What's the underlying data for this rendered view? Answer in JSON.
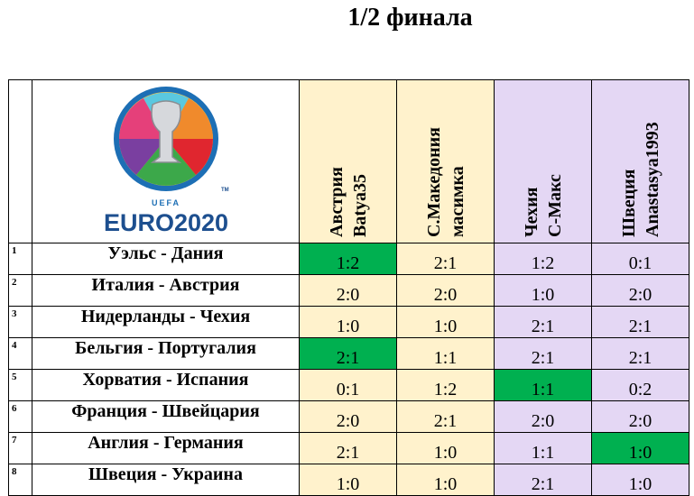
{
  "title": "1/2  финала",
  "logo": {
    "uefa": "UEFA",
    "euro": "EURO2020",
    "tm": "TM"
  },
  "players": [
    {
      "team": "Австрия",
      "name": "Batya35",
      "color": "yellow"
    },
    {
      "team": "С.Македония",
      "name": "масимка",
      "color": "yellow"
    },
    {
      "team": "Чехия",
      "name": "С-Макс",
      "color": "purple"
    },
    {
      "team": "Швеция",
      "name": "Anastasya1993",
      "color": "purple"
    }
  ],
  "rows": [
    {
      "num": "1",
      "match": "Уэльс - Дания",
      "scores": [
        "1:2",
        "2:1",
        "1:2",
        "0:1"
      ],
      "highlight": [
        true,
        false,
        false,
        false
      ]
    },
    {
      "num": "2",
      "match": "Италия - Австрия",
      "scores": [
        "2:0",
        "2:0",
        "1:0",
        "2:0"
      ],
      "highlight": [
        false,
        false,
        false,
        false
      ]
    },
    {
      "num": "3",
      "match": "Нидерланды - Чехия",
      "scores": [
        "1:0",
        "1:0",
        "2:1",
        "2:1"
      ],
      "highlight": [
        false,
        false,
        false,
        false
      ]
    },
    {
      "num": "4",
      "match": "Бельгия - Португалия",
      "scores": [
        "2:1",
        "1:1",
        "2:1",
        "2:1"
      ],
      "highlight": [
        true,
        false,
        false,
        false
      ]
    },
    {
      "num": "5",
      "match": "Хорватия - Испания",
      "scores": [
        "0:1",
        "1:2",
        "1:1",
        "0:2"
      ],
      "highlight": [
        false,
        false,
        true,
        false
      ]
    },
    {
      "num": "6",
      "match": "Франция - Швейцария",
      "scores": [
        "2:0",
        "2:1",
        "2:0",
        "2:0"
      ],
      "highlight": [
        false,
        false,
        false,
        false
      ]
    },
    {
      "num": "7",
      "match": "Англия - Германия",
      "scores": [
        "2:1",
        "1:0",
        "1:1",
        "1:0"
      ],
      "highlight": [
        false,
        false,
        false,
        true
      ]
    },
    {
      "num": "8",
      "match": "Швеция - Украина",
      "scores": [
        "1:0",
        "1:0",
        "2:1",
        "1:0"
      ],
      "highlight": [
        false,
        false,
        false,
        false
      ]
    }
  ],
  "colors": {
    "yellow": "#fff2cc",
    "purple": "#e4d7f4",
    "green": "#00b050"
  }
}
